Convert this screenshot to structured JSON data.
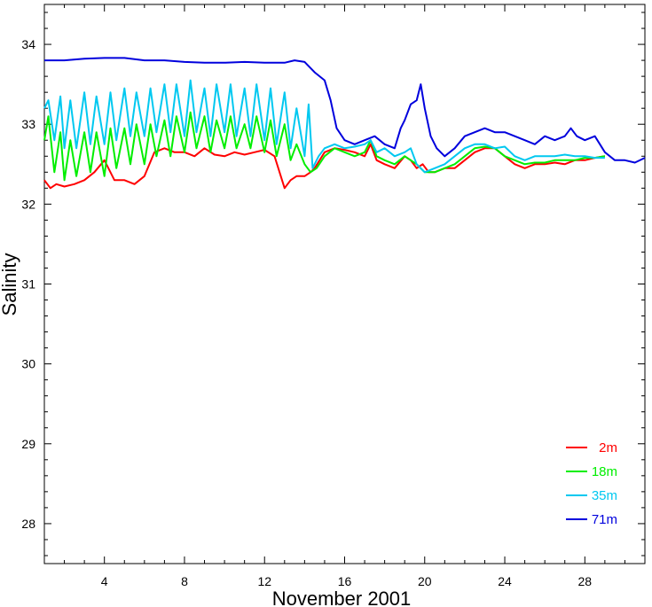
{
  "chart_data": {
    "type": "line",
    "title": "",
    "xlabel": "November 2001",
    "ylabel": "Salinity",
    "xlim": [
      1,
      31
    ],
    "ylim": [
      27.5,
      34.5
    ],
    "x_ticks": [
      4,
      8,
      12,
      16,
      20,
      24,
      28
    ],
    "x_tick_labels": [
      "4",
      "8",
      "12",
      "16",
      "20",
      "24",
      "28"
    ],
    "y_ticks": [
      28,
      29,
      30,
      31,
      32,
      33,
      34
    ],
    "y_tick_labels": [
      "28",
      "29",
      "30",
      "31",
      "32",
      "33",
      "34"
    ],
    "grid": false,
    "legend_position": "bottom-right",
    "series": [
      {
        "name": "2m",
        "color": "#ff0000",
        "x": [
          1.0,
          1.3,
          1.6,
          2.0,
          2.5,
          3.0,
          3.5,
          4.0,
          4.5,
          5.0,
          5.5,
          6.0,
          6.5,
          7.0,
          7.5,
          8.0,
          8.5,
          9.0,
          9.5,
          10.0,
          10.5,
          11.0,
          11.5,
          12.0,
          12.5,
          13.0,
          13.3,
          13.6,
          14.0,
          14.3,
          14.5,
          15.0,
          15.5,
          16.0,
          16.5,
          17.0,
          17.3,
          17.6,
          18.0,
          18.5,
          19.0,
          19.3,
          19.6,
          19.9,
          20.2,
          20.5,
          21.0,
          21.5,
          22.0,
          22.5,
          23.0,
          23.5,
          24.0,
          24.5,
          25.0,
          25.5,
          26.0,
          26.5,
          27.0,
          27.5,
          28.0,
          28.5,
          29.0
        ],
        "values": [
          32.3,
          32.2,
          32.25,
          32.22,
          32.25,
          32.3,
          32.4,
          32.55,
          32.3,
          32.3,
          32.25,
          32.35,
          32.65,
          32.7,
          32.65,
          32.65,
          32.6,
          32.7,
          32.62,
          32.6,
          32.65,
          32.62,
          32.65,
          32.68,
          32.6,
          32.2,
          32.3,
          32.35,
          32.35,
          32.4,
          32.45,
          32.65,
          32.7,
          32.68,
          32.65,
          32.6,
          32.75,
          32.55,
          32.5,
          32.45,
          32.6,
          32.55,
          32.45,
          32.5,
          32.4,
          32.4,
          32.45,
          32.45,
          32.55,
          32.65,
          32.7,
          32.7,
          32.6,
          32.5,
          32.45,
          32.5,
          32.5,
          32.52,
          32.5,
          32.55,
          32.55,
          32.58,
          32.6
        ]
      },
      {
        "name": "18m",
        "color": "#00ee00",
        "x": [
          1.0,
          1.2,
          1.5,
          1.8,
          2.0,
          2.3,
          2.6,
          3.0,
          3.3,
          3.6,
          4.0,
          4.3,
          4.6,
          5.0,
          5.3,
          5.6,
          6.0,
          6.3,
          6.6,
          7.0,
          7.3,
          7.6,
          8.0,
          8.3,
          8.6,
          9.0,
          9.3,
          9.6,
          10.0,
          10.3,
          10.6,
          11.0,
          11.3,
          11.6,
          12.0,
          12.3,
          12.6,
          13.0,
          13.3,
          13.6,
          14.0,
          14.3,
          14.6,
          15.0,
          15.5,
          16.0,
          16.5,
          17.0,
          17.3,
          17.6,
          18.0,
          18.5,
          19.0,
          19.3,
          19.6,
          20.0,
          20.5,
          21.0,
          21.5,
          22.0,
          22.5,
          23.0,
          23.5,
          24.0,
          24.5,
          25.0,
          25.5,
          26.0,
          26.5,
          27.0,
          27.5,
          28.0,
          28.5,
          29.0
        ],
        "values": [
          32.8,
          33.1,
          32.4,
          32.9,
          32.3,
          32.8,
          32.35,
          32.9,
          32.4,
          32.9,
          32.35,
          32.95,
          32.45,
          32.95,
          32.5,
          33.0,
          32.5,
          33.0,
          32.6,
          33.05,
          32.6,
          33.1,
          32.65,
          33.15,
          32.7,
          33.1,
          32.65,
          33.05,
          32.7,
          33.1,
          32.7,
          33.0,
          32.7,
          33.1,
          32.65,
          33.05,
          32.6,
          33.0,
          32.55,
          32.75,
          32.5,
          32.4,
          32.45,
          32.6,
          32.7,
          32.65,
          32.6,
          32.65,
          32.8,
          32.6,
          32.55,
          32.5,
          32.6,
          32.55,
          32.5,
          32.4,
          32.4,
          32.45,
          32.5,
          32.6,
          32.7,
          32.72,
          32.7,
          32.6,
          32.55,
          32.5,
          32.52,
          32.52,
          32.55,
          32.55,
          32.55,
          32.58,
          32.58,
          32.6
        ]
      },
      {
        "name": "35m",
        "color": "#00c8f0",
        "x": [
          1.0,
          1.2,
          1.5,
          1.8,
          2.0,
          2.3,
          2.6,
          3.0,
          3.3,
          3.6,
          4.0,
          4.3,
          4.6,
          5.0,
          5.3,
          5.6,
          6.0,
          6.3,
          6.6,
          7.0,
          7.3,
          7.6,
          8.0,
          8.3,
          8.6,
          9.0,
          9.3,
          9.6,
          10.0,
          10.3,
          10.6,
          11.0,
          11.3,
          11.6,
          12.0,
          12.3,
          12.6,
          13.0,
          13.3,
          13.6,
          14.0,
          14.2,
          14.4,
          14.7,
          15.0,
          15.5,
          16.0,
          16.5,
          17.0,
          17.3,
          17.6,
          18.0,
          18.5,
          19.0,
          19.3,
          19.6,
          20.0,
          20.5,
          21.0,
          21.5,
          22.0,
          22.5,
          23.0,
          23.5,
          24.0,
          24.5,
          25.0,
          25.5,
          26.0,
          26.5,
          27.0,
          27.5,
          28.0,
          28.5,
          29.0
        ],
        "values": [
          33.2,
          33.3,
          32.8,
          33.35,
          32.7,
          33.3,
          32.7,
          33.4,
          32.75,
          33.35,
          32.75,
          33.4,
          32.8,
          33.45,
          32.85,
          33.4,
          32.85,
          33.45,
          32.9,
          33.5,
          32.9,
          33.5,
          32.85,
          33.55,
          32.9,
          33.45,
          32.85,
          33.5,
          32.9,
          33.5,
          32.85,
          33.45,
          32.85,
          33.5,
          32.8,
          33.45,
          32.75,
          33.4,
          32.7,
          33.2,
          32.6,
          33.25,
          32.45,
          32.6,
          32.7,
          32.75,
          32.7,
          32.72,
          32.75,
          32.8,
          32.65,
          32.7,
          32.6,
          32.65,
          32.7,
          32.5,
          32.4,
          32.45,
          32.5,
          32.6,
          32.7,
          32.75,
          32.75,
          32.7,
          32.72,
          32.6,
          32.55,
          32.6,
          32.6,
          32.6,
          32.62,
          32.6,
          32.6,
          32.58,
          32.58
        ]
      },
      {
        "name": "71m",
        "color": "#0000dd",
        "x": [
          1.0,
          2.0,
          3.0,
          4.0,
          5.0,
          6.0,
          7.0,
          8.0,
          9.0,
          10.0,
          11.0,
          12.0,
          13.0,
          13.5,
          14.0,
          14.5,
          15.0,
          15.3,
          15.6,
          16.0,
          16.5,
          17.0,
          17.5,
          18.0,
          18.5,
          18.8,
          19.0,
          19.3,
          19.6,
          19.8,
          20.0,
          20.3,
          20.6,
          21.0,
          21.5,
          22.0,
          22.5,
          23.0,
          23.5,
          24.0,
          24.5,
          25.0,
          25.5,
          26.0,
          26.5,
          27.0,
          27.3,
          27.6,
          28.0,
          28.5,
          29.0,
          29.5,
          30.0,
          30.5,
          31.0
        ],
        "values": [
          33.8,
          33.8,
          33.82,
          33.83,
          33.83,
          33.8,
          33.8,
          33.78,
          33.77,
          33.77,
          33.78,
          33.77,
          33.77,
          33.8,
          33.78,
          33.65,
          33.55,
          33.3,
          32.95,
          32.8,
          32.75,
          32.8,
          32.85,
          32.75,
          32.7,
          32.95,
          33.05,
          33.25,
          33.3,
          33.5,
          33.2,
          32.85,
          32.7,
          32.6,
          32.7,
          32.85,
          32.9,
          32.95,
          32.9,
          32.9,
          32.85,
          32.8,
          32.75,
          32.85,
          32.8,
          32.85,
          32.95,
          32.85,
          32.8,
          32.85,
          32.65,
          32.55,
          32.55,
          32.52,
          32.58
        ]
      }
    ]
  }
}
